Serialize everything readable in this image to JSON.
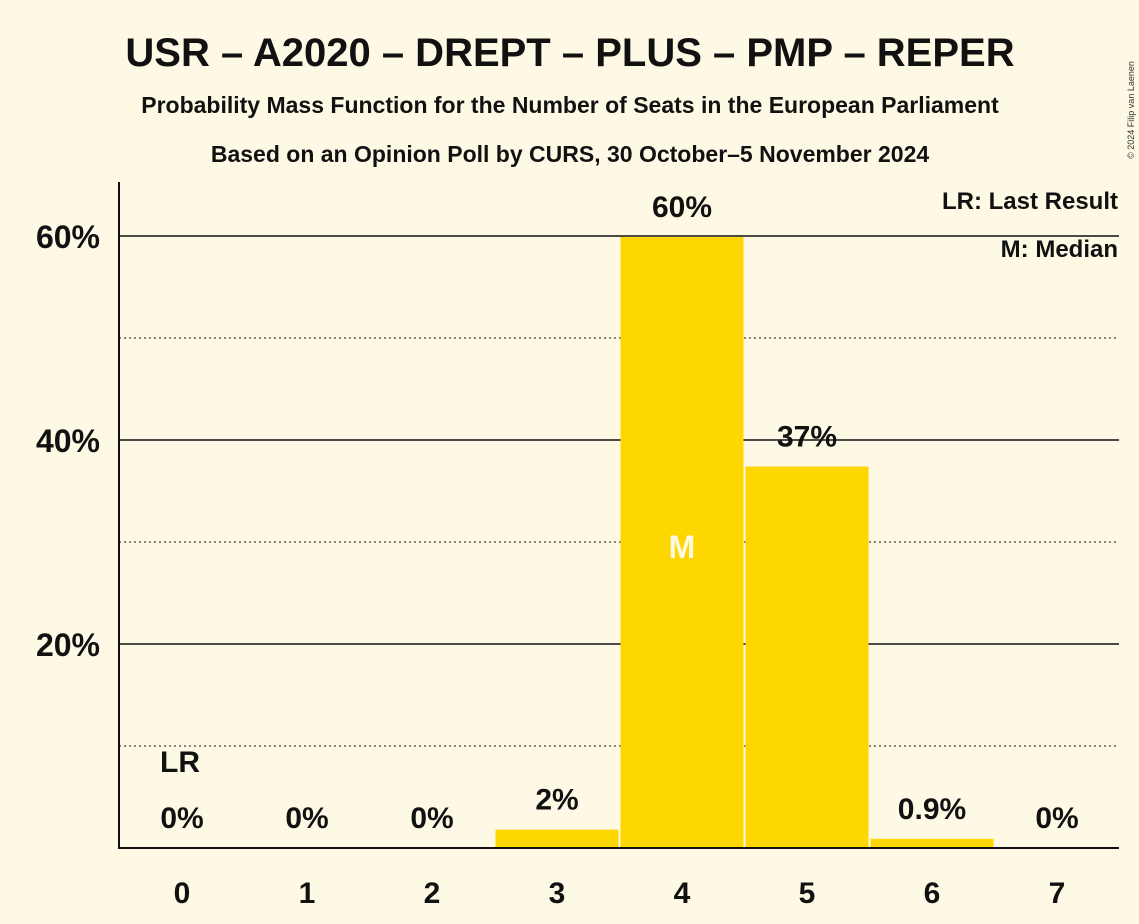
{
  "chart_data": {
    "type": "bar",
    "title": "USR – A2020 – DREPT – PLUS – PMP – REPER",
    "subtitle": "Probability Mass Function for the Number of Seats in the European Parliament",
    "subtitle2": "Based on an Opinion Poll by CURS, 30 October–5 November 2024",
    "copyright": "© 2024 Filip van Laenen",
    "categories": [
      "0",
      "1",
      "2",
      "3",
      "4",
      "5",
      "6",
      "7"
    ],
    "values": [
      0,
      0,
      0,
      1.8,
      59.9,
      37.4,
      0.9,
      0
    ],
    "value_labels": [
      "0%",
      "0%",
      "0%",
      "2%",
      "60%",
      "37%",
      "0.9%",
      "0%"
    ],
    "ylim": [
      0,
      60
    ],
    "yticks": [
      {
        "value": 20,
        "label": "20%"
      },
      {
        "value": 40,
        "label": "40%"
      },
      {
        "value": 60,
        "label": "60%"
      }
    ],
    "minor_gridlines": [
      10,
      30,
      50
    ],
    "last_result_index": 0,
    "last_result_marker": "LR",
    "median_index": 4,
    "median_marker": "M",
    "legend": [
      "LR: Last Result",
      "M: Median"
    ],
    "legend_position": "top-right",
    "bar_color": "#ffd700",
    "background_color": "#fdf9e4"
  }
}
